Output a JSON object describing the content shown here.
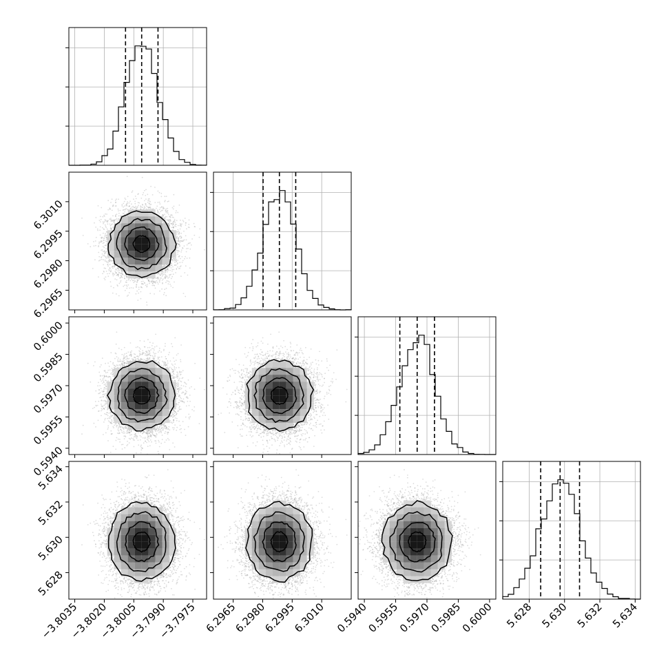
{
  "chart_data": {
    "type": "corner",
    "parameters": [
      {
        "mean": -3.8001,
        "sd": 0.00083,
        "range": [
          -3.8038,
          -3.7968
        ],
        "ticks": [
          -3.8035,
          -3.802,
          -3.8005,
          -3.799,
          -3.7975
        ],
        "tick_labels": [
          "−3.8035",
          "−3.8020",
          "−3.8005",
          "−3.7990",
          "−3.7975"
        ],
        "quantiles": [
          -3.80092,
          -3.8001,
          -3.79927
        ]
      },
      {
        "mean": 6.29885,
        "sd": 0.00083,
        "range": [
          6.2955,
          6.3025
        ],
        "ticks": [
          6.2965,
          6.298,
          6.2995,
          6.301
        ],
        "tick_labels": [
          "6.2965",
          "6.2980",
          "6.2995",
          "6.3010"
        ],
        "quantiles": [
          6.29802,
          6.29885,
          6.29968
        ]
      },
      {
        "mean": 0.59653,
        "sd": 0.00083,
        "range": [
          0.5937,
          0.6003
        ],
        "ticks": [
          0.594,
          0.5955,
          0.597,
          0.5985,
          0.6
        ],
        "tick_labels": [
          "0.5940",
          "0.5955",
          "0.5970",
          "0.5985",
          "0.6000"
        ],
        "quantiles": [
          0.5957,
          0.59653,
          0.59736
        ]
      },
      {
        "mean": 5.62975,
        "sd": 0.0011,
        "range": [
          5.6265,
          5.6343
        ],
        "ticks": [
          5.628,
          5.63,
          5.632,
          5.634
        ],
        "tick_labels": [
          "5.628",
          "5.630",
          "5.632",
          "5.634"
        ],
        "quantiles": [
          5.62865,
          5.62975,
          5.63085
        ]
      }
    ],
    "contour_levels_sigma": [
      0.5,
      1.0,
      1.5,
      2.0
    ],
    "grid": true,
    "colors": {
      "points": "#9a9a9a",
      "density": "#000000",
      "lines": "#000000"
    }
  }
}
